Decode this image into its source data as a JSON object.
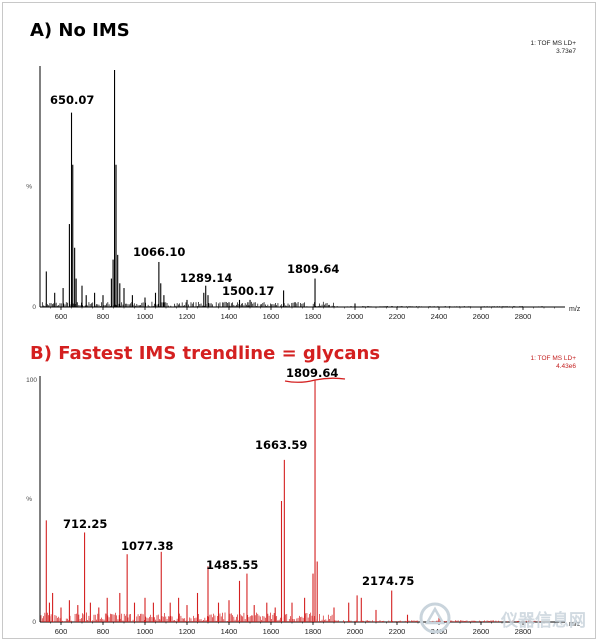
{
  "colors": {
    "panelA": "#000000",
    "panelB": "#d42020",
    "watermark": "#c9d4dc"
  },
  "panelA": {
    "title": "A) No IMS",
    "instrument": "1: TOF MS LD+",
    "intensity": "3.73e7",
    "y_label": "%",
    "y_bottom_label": "0"
  },
  "panelB": {
    "title": "B) Fastest IMS trendline = glycans",
    "instrument": "1: TOF MS LD+",
    "intensity": "4.43e6",
    "y_label": "%",
    "y_top_label": "100",
    "y_bottom_label": "0"
  },
  "x_unit_label": "m/z",
  "watermark_text": "仪器信息网",
  "chart_data": [
    {
      "type": "line",
      "name": "A) No IMS",
      "xlim": [
        500,
        3000
      ],
      "ylim": [
        0,
        100
      ],
      "x_ticks": [
        600,
        800,
        1000,
        1200,
        1400,
        1600,
        1800,
        2000,
        2200,
        2400,
        2600,
        2800
      ],
      "peaks": [
        {
          "x": 530,
          "y": 15
        },
        {
          "x": 570,
          "y": 6
        },
        {
          "x": 610,
          "y": 8
        },
        {
          "x": 640,
          "y": 35
        },
        {
          "x": 650.07,
          "y": 82
        },
        {
          "x": 656,
          "y": 60
        },
        {
          "x": 665,
          "y": 25
        },
        {
          "x": 672,
          "y": 12
        },
        {
          "x": 700,
          "y": 9
        },
        {
          "x": 720,
          "y": 5
        },
        {
          "x": 760,
          "y": 6
        },
        {
          "x": 800,
          "y": 5
        },
        {
          "x": 840,
          "y": 12
        },
        {
          "x": 848,
          "y": 20
        },
        {
          "x": 855,
          "y": 100
        },
        {
          "x": 862,
          "y": 60
        },
        {
          "x": 870,
          "y": 22
        },
        {
          "x": 880,
          "y": 10
        },
        {
          "x": 900,
          "y": 8
        },
        {
          "x": 940,
          "y": 5
        },
        {
          "x": 1000,
          "y": 4
        },
        {
          "x": 1050,
          "y": 6
        },
        {
          "x": 1066.1,
          "y": 19
        },
        {
          "x": 1075,
          "y": 10
        },
        {
          "x": 1090,
          "y": 5
        },
        {
          "x": 1200,
          "y": 3
        },
        {
          "x": 1280,
          "y": 6
        },
        {
          "x": 1289.14,
          "y": 9
        },
        {
          "x": 1300,
          "y": 5
        },
        {
          "x": 1400,
          "y": 2
        },
        {
          "x": 1450,
          "y": 3
        },
        {
          "x": 1490,
          "y": 2
        },
        {
          "x": 1500.17,
          "y": 3
        },
        {
          "x": 1660,
          "y": 7
        },
        {
          "x": 1809.64,
          "y": 12
        },
        {
          "x": 2000,
          "y": 1.5
        }
      ],
      "labels": [
        {
          "x": 650.07,
          "text": "650.07"
        },
        {
          "x": 1066.1,
          "text": "1066.10"
        },
        {
          "x": 1289.14,
          "text": "1289.14"
        },
        {
          "x": 1500.17,
          "text": "1500.17"
        },
        {
          "x": 1809.64,
          "text": "1809.64"
        }
      ]
    },
    {
      "type": "line",
      "name": "B) Fastest IMS trendline = glycans",
      "xlim": [
        500,
        3000
      ],
      "ylim": [
        0,
        100
      ],
      "x_ticks": [
        600,
        800,
        1000,
        1200,
        1400,
        1600,
        1800,
        2000,
        2200,
        2400,
        2600,
        2800
      ],
      "peaks": [
        {
          "x": 530,
          "y": 42
        },
        {
          "x": 545,
          "y": 8
        },
        {
          "x": 560,
          "y": 12
        },
        {
          "x": 600,
          "y": 6
        },
        {
          "x": 640,
          "y": 9
        },
        {
          "x": 680,
          "y": 7
        },
        {
          "x": 712.25,
          "y": 37
        },
        {
          "x": 740,
          "y": 8
        },
        {
          "x": 780,
          "y": 6
        },
        {
          "x": 820,
          "y": 10
        },
        {
          "x": 880,
          "y": 12
        },
        {
          "x": 915,
          "y": 28
        },
        {
          "x": 950,
          "y": 8
        },
        {
          "x": 1000,
          "y": 10
        },
        {
          "x": 1040,
          "y": 8
        },
        {
          "x": 1077.38,
          "y": 29
        },
        {
          "x": 1120,
          "y": 8
        },
        {
          "x": 1160,
          "y": 10
        },
        {
          "x": 1200,
          "y": 7
        },
        {
          "x": 1250,
          "y": 12
        },
        {
          "x": 1300,
          "y": 23
        },
        {
          "x": 1350,
          "y": 8
        },
        {
          "x": 1400,
          "y": 9
        },
        {
          "x": 1450,
          "y": 17
        },
        {
          "x": 1485.55,
          "y": 20
        },
        {
          "x": 1520,
          "y": 7
        },
        {
          "x": 1580,
          "y": 8
        },
        {
          "x": 1620,
          "y": 6
        },
        {
          "x": 1650,
          "y": 50
        },
        {
          "x": 1663.59,
          "y": 67
        },
        {
          "x": 1700,
          "y": 8
        },
        {
          "x": 1760,
          "y": 10
        },
        {
          "x": 1800,
          "y": 20
        },
        {
          "x": 1809.64,
          "y": 100
        },
        {
          "x": 1820,
          "y": 25
        },
        {
          "x": 1900,
          "y": 6
        },
        {
          "x": 1970,
          "y": 8
        },
        {
          "x": 2010,
          "y": 11
        },
        {
          "x": 2030,
          "y": 10
        },
        {
          "x": 2100,
          "y": 5
        },
        {
          "x": 2174.75,
          "y": 13
        },
        {
          "x": 2250,
          "y": 3
        },
        {
          "x": 2400,
          "y": 2
        }
      ],
      "labels": [
        {
          "x": 712.25,
          "text": "712.25"
        },
        {
          "x": 1077.38,
          "text": "1077.38"
        },
        {
          "x": 1485.55,
          "text": "1485.55"
        },
        {
          "x": 1663.59,
          "text": "1663.59"
        },
        {
          "x": 1809.64,
          "text": "1809.64"
        },
        {
          "x": 2174.75,
          "text": "2174.75"
        }
      ]
    }
  ]
}
